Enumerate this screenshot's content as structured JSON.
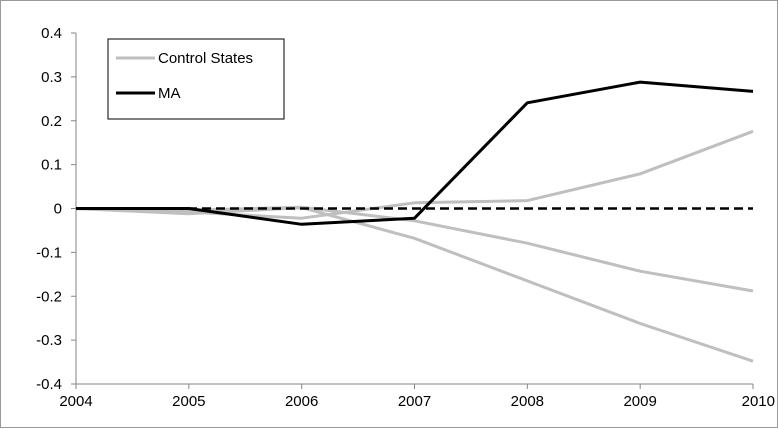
{
  "chart_data": {
    "type": "line",
    "title": "",
    "xlabel": "",
    "ylabel": "",
    "x": [
      2004,
      2005,
      2006,
      2007,
      2008,
      2009,
      2010
    ],
    "x_tick_labels": [
      "2004",
      "2005",
      "2006",
      "2007",
      "2008",
      "2009",
      "2010"
    ],
    "ylim": [
      -0.4,
      0.4
    ],
    "y_tick_labels": [
      "0.4",
      "0.3",
      "0.2",
      "0.1",
      "0",
      "-0.1",
      "-0.2",
      "-0.3",
      "-0.4"
    ],
    "grid": false,
    "legend_position": "top-left",
    "legend": [
      {
        "label": "Control States",
        "color": "#bfbfbf"
      },
      {
        "label": "MA",
        "color": "#000000"
      }
    ],
    "series": [
      {
        "name": "Control States",
        "color": "#bfbfbf",
        "values": [
          0,
          -0.012,
          0.002,
          -0.068,
          -0.165,
          -0.262,
          -0.348
        ]
      },
      {
        "color": "#bfbfbf",
        "values": [
          0,
          -0.008,
          -0.022,
          0.013,
          0.018,
          0.079,
          0.176
        ]
      },
      {
        "color": "#bfbfbf",
        "values": [
          0,
          -0.004,
          0.003,
          -0.028,
          -0.079,
          -0.143,
          -0.188
        ]
      },
      {
        "name": "MA",
        "color": "#000000",
        "values": [
          0,
          0,
          -0.036,
          -0.022,
          0.241,
          0.288,
          0.267
        ]
      },
      {
        "color": "#000000",
        "dashed": true,
        "values": [
          0,
          0,
          0,
          0,
          0,
          0,
          0
        ]
      }
    ]
  }
}
